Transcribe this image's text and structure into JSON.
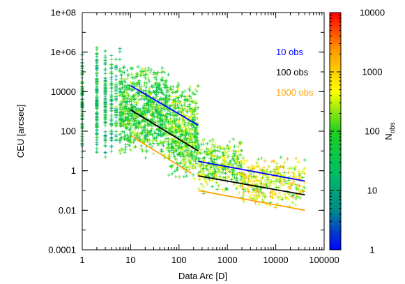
{
  "chart_data": {
    "type": "scatter",
    "title": "",
    "xlabel": "Data Arc [D]",
    "ylabel": "CEU [arcsec]",
    "xscale": "log",
    "yscale": "log",
    "xlim": [
      1,
      100000
    ],
    "ylim": [
      0.0001,
      100000000
    ],
    "grid": false,
    "legend_position": "top-right",
    "x_ticks": [
      {
        "value": 1,
        "label": "1"
      },
      {
        "value": 10,
        "label": "10"
      },
      {
        "value": 100,
        "label": "100"
      },
      {
        "value": 1000,
        "label": "1000"
      },
      {
        "value": 10000,
        "label": "10000"
      },
      {
        "value": 100000,
        "label": "100000"
      }
    ],
    "y_ticks": [
      {
        "value": 0.0001,
        "label": "0.0001"
      },
      {
        "value": 0.01,
        "label": "0.01"
      },
      {
        "value": 1,
        "label": "1"
      },
      {
        "value": 100,
        "label": "100"
      },
      {
        "value": 10000,
        "label": "10000"
      },
      {
        "value": 1000000,
        "label": "1e+06"
      },
      {
        "value": 100000000,
        "label": "1e+08"
      }
    ],
    "colorbar": {
      "label_base": "N",
      "label_sub": "obs",
      "scale": "log",
      "range": [
        1,
        10000
      ],
      "colors": [
        "#0000ff",
        "#008a8a",
        "#00c060",
        "#20d020",
        "#ffff00",
        "#ffa000",
        "#ff0000"
      ],
      "ticks": [
        {
          "value": 1,
          "label": "1"
        },
        {
          "value": 10,
          "label": "10"
        },
        {
          "value": 100,
          "label": "100"
        },
        {
          "value": 1000,
          "label": "1000"
        },
        {
          "value": 10000,
          "label": "10000"
        }
      ]
    },
    "series": [
      {
        "name": "10 obs",
        "color": "#0000ff",
        "segments": [
          {
            "x": [
              10,
              250
            ],
            "y": [
              20000,
              200
            ]
          },
          {
            "x": [
              250,
              40000
            ],
            "y": [
              3,
              0.3
            ]
          }
        ]
      },
      {
        "name": "100 obs",
        "color": "#000000",
        "segments": [
          {
            "x": [
              10,
              250
            ],
            "y": [
              1200,
              10
            ]
          },
          {
            "x": [
              250,
              40000
            ],
            "y": [
              0.55,
              0.06
            ]
          }
        ]
      },
      {
        "name": "1000 obs",
        "color": "#ffa000",
        "segments": [
          {
            "x": [
              10,
              180
            ],
            "y": [
              60,
              0.75
            ]
          },
          {
            "x": [
              250,
              40000
            ],
            "y": [
              0.1,
              0.01
            ]
          }
        ]
      }
    ],
    "scatter_regions": [
      {
        "x_range": [
          1,
          6
        ],
        "y_log_range": [
          0.5,
          6.5
        ],
        "count": 500,
        "nobs_log": [
          0.7,
          2.2
        ]
      },
      {
        "x_range": [
          6,
          60
        ],
        "y_log_range": [
          0.5,
          5.5
        ],
        "count": 900,
        "nobs_log": [
          1.2,
          2.5
        ]
      },
      {
        "x_range": [
          60,
          250
        ],
        "y_log_range": [
          -0.5,
          4.5
        ],
        "count": 600,
        "nobs_log": [
          1.4,
          2.7
        ]
      },
      {
        "x_range": [
          250,
          2000
        ],
        "y_log_range": [
          -1.2,
          1.8
        ],
        "count": 350,
        "nobs_log": [
          1.5,
          2.9
        ]
      },
      {
        "x_range": [
          2000,
          40000
        ],
        "y_log_range": [
          -2.0,
          0.8
        ],
        "count": 350,
        "nobs_log": [
          1.9,
          3.4
        ]
      }
    ]
  }
}
